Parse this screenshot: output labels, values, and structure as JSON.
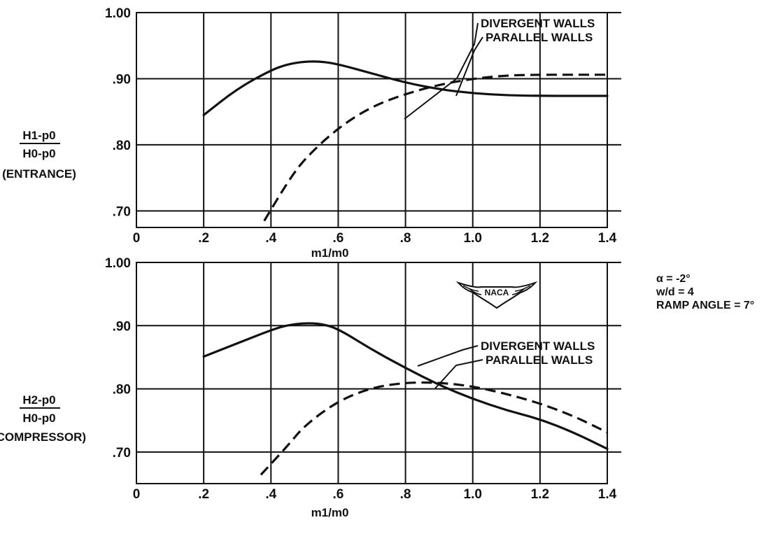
{
  "chart_data": [
    {
      "type": "line",
      "x": [
        0.2,
        0.3,
        0.4,
        0.5,
        0.6,
        0.7,
        0.8,
        0.9,
        1.0,
        1.1,
        1.2,
        1.3,
        1.4
      ],
      "xticks": [
        "0",
        ".2",
        ".4",
        ".6",
        ".8",
        "1.0",
        "1.2",
        "1.4"
      ],
      "yticks": [
        "1.00",
        ".90",
        ".80",
        ".70"
      ],
      "xlim": [
        0,
        1.4
      ],
      "ylim": [
        0.675,
        1.0
      ],
      "xlabel": "m1/m0",
      "ylabel": [
        "H1-p0",
        "H0-p0",
        "(ENTRANCE)"
      ],
      "grid": true,
      "series": [
        {
          "name": "DIVERGENT WALLS",
          "style": "solid",
          "x": [
            0.2,
            0.3,
            0.4,
            0.45,
            0.5,
            0.55,
            0.6,
            0.7,
            0.8,
            0.9,
            1.0,
            1.1,
            1.2,
            1.3,
            1.4
          ],
          "values": [
            0.845,
            0.885,
            0.913,
            0.922,
            0.926,
            0.926,
            0.922,
            0.908,
            0.894,
            0.884,
            0.878,
            0.875,
            0.874,
            0.874,
            0.874
          ]
        },
        {
          "name": "PARALLEL WALLS",
          "style": "dashed",
          "x": [
            0.38,
            0.45,
            0.5,
            0.6,
            0.7,
            0.8,
            0.9,
            1.0,
            1.1,
            1.2,
            1.3,
            1.4
          ],
          "values": [
            0.685,
            0.744,
            0.779,
            0.826,
            0.858,
            0.877,
            0.891,
            0.9,
            0.905,
            0.906,
            0.906,
            0.906
          ]
        }
      ]
    },
    {
      "type": "line",
      "x": [
        0.2,
        0.3,
        0.4,
        0.5,
        0.6,
        0.7,
        0.8,
        0.9,
        1.0,
        1.1,
        1.2,
        1.3,
        1.4
      ],
      "xticks": [
        "0",
        ".2",
        ".4",
        ".6",
        ".8",
        "1.0",
        "1.2",
        "1.4"
      ],
      "yticks": [
        "1.00",
        ".90",
        ".80",
        ".70"
      ],
      "xlim": [
        0,
        1.4
      ],
      "ylim": [
        0.65,
        1.0
      ],
      "xlabel": "m1/m0",
      "ylabel": [
        "H2-p0",
        "H0-p0",
        "(COMPRESSOR)"
      ],
      "grid": true,
      "series": [
        {
          "name": "DIVERGENT WALLS",
          "style": "solid",
          "x": [
            0.2,
            0.3,
            0.4,
            0.45,
            0.5,
            0.55,
            0.6,
            0.7,
            0.8,
            0.9,
            1.0,
            1.1,
            1.2,
            1.3,
            1.4
          ],
          "values": [
            0.851,
            0.872,
            0.893,
            0.901,
            0.904,
            0.903,
            0.895,
            0.862,
            0.833,
            0.806,
            0.784,
            0.766,
            0.752,
            0.731,
            0.705
          ]
        },
        {
          "name": "PARALLEL WALLS",
          "style": "dashed",
          "x": [
            0.37,
            0.45,
            0.5,
            0.6,
            0.7,
            0.8,
            0.9,
            1.0,
            1.1,
            1.2,
            1.3,
            1.4
          ],
          "values": [
            0.664,
            0.71,
            0.742,
            0.781,
            0.802,
            0.81,
            0.81,
            0.804,
            0.792,
            0.777,
            0.757,
            0.731
          ]
        }
      ]
    }
  ],
  "conditions": {
    "alpha": "α = -2°",
    "wd": "w/d = 4",
    "ramp": "RAMP ANGLE = 7°"
  },
  "logo_text": "NACA"
}
